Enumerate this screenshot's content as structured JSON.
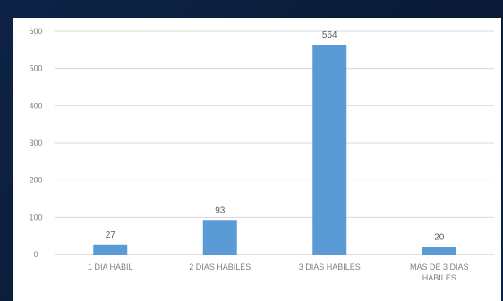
{
  "chart_data": {
    "type": "bar",
    "title": "",
    "xlabel": "",
    "ylabel": "",
    "categories": [
      "1 DIA HABIL",
      "2 DIAS HABILES",
      "3 DIAS HABILES",
      "MAS DE 3 DIAS HABILES"
    ],
    "category_lines": [
      [
        "1 DIA HABIL"
      ],
      [
        "2 DIAS HABILES"
      ],
      [
        "3 DIAS HABILES"
      ],
      [
        "MAS DE 3 DIAS",
        "HABILES"
      ]
    ],
    "values": [
      27,
      93,
      564,
      20
    ],
    "data_labels": [
      "27",
      "93",
      "564",
      "20"
    ],
    "ylim": [
      0,
      600
    ],
    "yticks": [
      0,
      100,
      200,
      300,
      400,
      500,
      600
    ],
    "ytick_labels": [
      "0",
      "100",
      "200",
      "300",
      "400",
      "500",
      "600"
    ],
    "grid": true,
    "legend": "none",
    "colors": {
      "bar": "#5b9bd5",
      "grid": "#d9d9d9",
      "axis_text": "#7f7f7f",
      "background": "#0c1e3f",
      "plot_bg": "#ffffff"
    }
  }
}
